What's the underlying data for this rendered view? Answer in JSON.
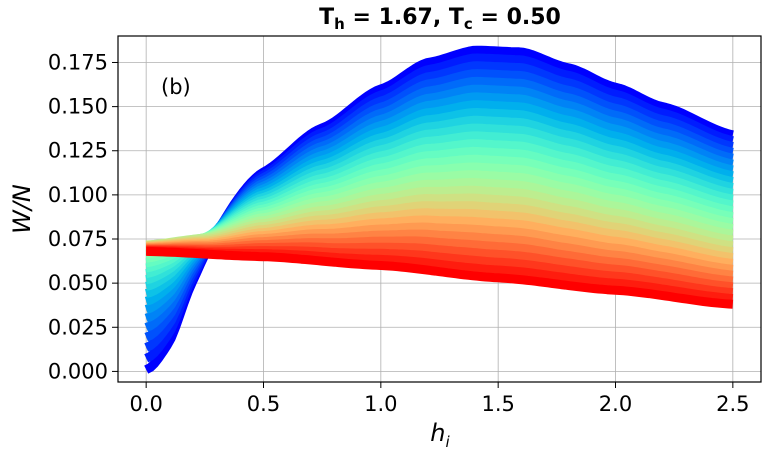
{
  "chart_data": {
    "type": "area",
    "title": {
      "parts": [
        {
          "text": "T",
          "kind": "base"
        },
        {
          "text": "h",
          "kind": "sub"
        },
        {
          "text": " = 1.67, ",
          "kind": "base"
        },
        {
          "text": "T",
          "kind": "base"
        },
        {
          "text": "c",
          "kind": "sub"
        },
        {
          "text": " = 0.50",
          "kind": "base"
        }
      ]
    },
    "panel_label": "(b)",
    "xlabel": {
      "base": "h",
      "sub": "i"
    },
    "ylabel": "W/N",
    "xlim": [
      -0.12,
      2.62
    ],
    "ylim": [
      -0.006,
      0.19
    ],
    "x_ticks": [
      {
        "value": 0.0,
        "label": "0.0"
      },
      {
        "value": 0.5,
        "label": "0.5"
      },
      {
        "value": 1.0,
        "label": "1.0"
      },
      {
        "value": 1.5,
        "label": "1.5"
      },
      {
        "value": 2.0,
        "label": "2.0"
      },
      {
        "value": 2.5,
        "label": "2.5"
      }
    ],
    "y_ticks": [
      {
        "value": 0.0,
        "label": "0.000"
      },
      {
        "value": 0.025,
        "label": "0.025"
      },
      {
        "value": 0.05,
        "label": "0.050"
      },
      {
        "value": 0.075,
        "label": "0.075"
      },
      {
        "value": 0.1,
        "label": "0.100"
      },
      {
        "value": 0.125,
        "label": "0.125"
      },
      {
        "value": 0.15,
        "label": "0.150"
      },
      {
        "value": 0.175,
        "label": "0.175"
      }
    ],
    "grid": true,
    "colormap": "rainbow",
    "colormap_order": "upper/violet curves to lower/red curves",
    "curve_count": 30,
    "boundary_curves": {
      "upper": {
        "x": [
          0.0,
          0.25,
          0.5,
          0.75,
          1.0,
          1.2,
          1.4,
          1.6,
          1.8,
          2.0,
          2.2,
          2.5
        ],
        "y": [
          0.078,
          0.09,
          0.115,
          0.138,
          0.16,
          0.175,
          0.182,
          0.181,
          0.172,
          0.161,
          0.15,
          0.134
        ]
      },
      "lower": {
        "x": [
          0.0,
          0.5,
          1.0,
          1.5,
          2.0,
          2.5
        ],
        "y": [
          0.068,
          0.065,
          0.06,
          0.053,
          0.046,
          0.038
        ]
      },
      "low_start": {
        "x": [
          0.0,
          0.1,
          0.2,
          0.3,
          0.4,
          0.5
        ],
        "y": [
          0.001,
          0.008,
          0.027,
          0.046,
          0.058,
          0.065
        ]
      }
    }
  }
}
